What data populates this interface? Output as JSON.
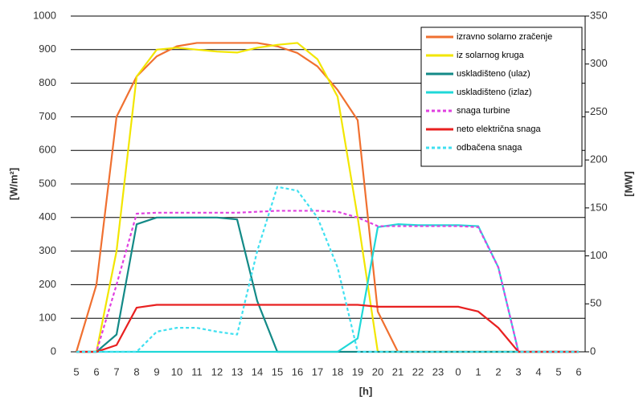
{
  "chart_data": {
    "type": "line",
    "xlabel": "[h]",
    "ylabel": "[W/m²]",
    "y2label": "[MW]",
    "categories": [
      "5",
      "6",
      "7",
      "8",
      "9",
      "10",
      "11",
      "12",
      "13",
      "14",
      "15",
      "16",
      "17",
      "18",
      "19",
      "20",
      "21",
      "22",
      "23",
      "0",
      "1",
      "2",
      "3",
      "4",
      "5",
      "6"
    ],
    "ylim": [
      0,
      1000
    ],
    "yticks": [
      0,
      100,
      200,
      300,
      400,
      500,
      600,
      700,
      800,
      900,
      1000
    ],
    "y2lim": [
      0,
      350
    ],
    "y2ticks": [
      0,
      50,
      100,
      150,
      200,
      250,
      300,
      350
    ],
    "grid": true,
    "legend": "top-right",
    "series": [
      {
        "name": "izravno solarno zračenje",
        "color": "#f07030",
        "axis": "y",
        "dashed": false,
        "values": [
          0,
          200,
          700,
          820,
          880,
          910,
          920,
          920,
          920,
          920,
          910,
          890,
          850,
          780,
          690,
          120,
          0,
          0,
          0,
          0,
          0,
          0,
          0,
          0,
          0,
          0
        ]
      },
      {
        "name": "iz solarnog kruga",
        "color": "#f2e600",
        "axis": "y2",
        "dashed": false,
        "values": [
          0,
          0,
          105,
          287,
          315,
          317,
          315,
          313,
          312,
          317,
          320,
          322,
          305,
          266,
          140,
          0,
          0,
          0,
          0,
          0,
          0,
          0,
          0,
          0,
          0,
          0
        ]
      },
      {
        "name": "uskladišteno (ulaz)",
        "color": "#138a87",
        "axis": "y2",
        "dashed": false,
        "values": [
          0,
          0,
          18,
          133,
          140,
          140,
          140,
          140,
          138,
          53,
          0,
          0,
          0,
          0,
          0,
          0,
          0,
          0,
          0,
          0,
          0,
          0,
          0,
          0,
          0,
          0
        ]
      },
      {
        "name": "uskladišteno (izlaz)",
        "color": "#20d8d8",
        "axis": "y2",
        "dashed": false,
        "values": [
          0,
          0,
          0,
          0,
          0,
          0,
          0,
          0,
          0,
          0,
          0,
          0,
          0,
          0,
          14,
          130,
          133,
          132,
          132,
          132,
          131,
          88,
          0,
          0,
          0,
          0
        ]
      },
      {
        "name": "snaga turbine",
        "color": "#e040e0",
        "axis": "y2",
        "dashed": true,
        "values": [
          0,
          0,
          70,
          144,
          145,
          145,
          145,
          145,
          145,
          146,
          147,
          147,
          147,
          146,
          140,
          131,
          131,
          131,
          131,
          131,
          130,
          88,
          0,
          0,
          0,
          0
        ]
      },
      {
        "name": "neto električna snaga",
        "color": "#e82020",
        "axis": "y2",
        "dashed": false,
        "values": [
          0,
          0,
          7,
          46,
          49,
          49,
          49,
          49,
          49,
          49,
          49,
          49,
          49,
          49,
          49,
          47,
          47,
          47,
          47,
          47,
          42,
          25,
          0,
          0,
          0,
          0
        ]
      },
      {
        "name": "odbačena snaga",
        "color": "#40e0f0",
        "axis": "y2",
        "dashed": true,
        "values": [
          0,
          0,
          0,
          0,
          21,
          25,
          25,
          21,
          18,
          105,
          172,
          168,
          140,
          88,
          0,
          0,
          0,
          0,
          0,
          0,
          0,
          0,
          0,
          0,
          0,
          0
        ]
      }
    ]
  }
}
